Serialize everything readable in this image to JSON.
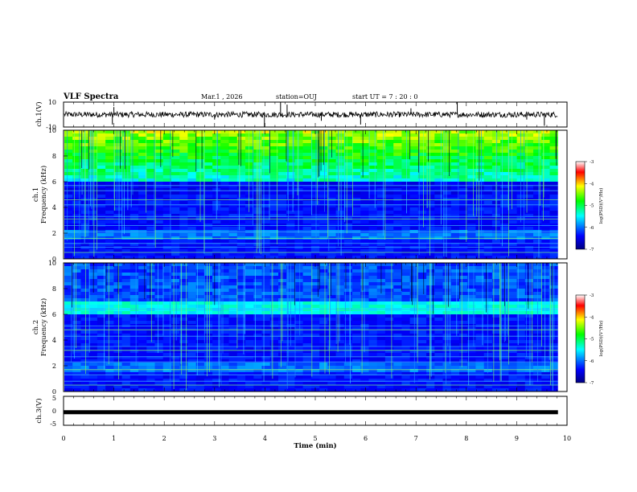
{
  "header": {
    "title": "VLF Spectra",
    "date": "Mar.1 , 2026",
    "station": "station=OUJ",
    "start": "start UT = 7 : 20 : 0"
  },
  "chart_data": [
    {
      "type": "line",
      "name": "ch1-waveform",
      "ylabel": "ch.1(V)",
      "ylim": [
        -10,
        10
      ],
      "yticks": [
        "10",
        "-10"
      ],
      "baseline": 0,
      "spikes": [
        {
          "t": 0.97,
          "v": -8
        },
        {
          "t": 1.0,
          "v": 6
        },
        {
          "t": 3.0,
          "v": -4
        },
        {
          "t": 3.99,
          "v": -10
        },
        {
          "t": 4.31,
          "v": 10
        },
        {
          "t": 4.44,
          "v": 8
        },
        {
          "t": 5.12,
          "v": -5
        },
        {
          "t": 5.9,
          "v": -8
        },
        {
          "t": 6.9,
          "v": 5
        },
        {
          "t": 7.82,
          "v": 10
        },
        {
          "t": 9.2,
          "v": -4
        },
        {
          "t": 9.55,
          "v": -9
        }
      ]
    },
    {
      "type": "heatmap",
      "name": "ch1-spectrogram",
      "ylabel": "ch.1 Frequency (kHz)",
      "ylim": [
        0,
        10
      ],
      "yticks": [
        "0",
        "2",
        "4",
        "6",
        "8",
        "10"
      ],
      "colorbar_label": "log(PSD)(V²/Hz)",
      "colorbar_range": [
        -7,
        -3
      ],
      "colorbar_ticks": [
        "-3",
        "-4",
        "-5",
        "-6",
        "-7"
      ],
      "lines_khz": [
        0.5,
        0.9,
        1.2,
        1.6,
        2.1,
        2.6,
        3.1,
        3.3,
        4.2,
        4.6,
        5.3,
        5.7
      ],
      "band_khz": [
        6.0,
        10.0
      ]
    },
    {
      "type": "heatmap",
      "name": "ch2-spectrogram",
      "ylabel": "ch.2 Frequency (kHz)",
      "ylim": [
        0,
        10
      ],
      "yticks": [
        "0",
        "2",
        "4",
        "6",
        "8",
        "10"
      ],
      "colorbar_label": "log(PSD)(V²/Hz)",
      "colorbar_range": [
        -7,
        -3
      ],
      "colorbar_ticks": [
        "-3",
        "-4",
        "-5",
        "-6",
        "-7"
      ],
      "lines_khz": [
        0.5,
        0.8,
        1.3,
        1.7,
        2.3,
        2.7,
        3.2,
        3.5,
        4.3,
        4.8,
        5.1,
        6.4
      ],
      "band_khz": [
        6.0,
        7.0
      ]
    },
    {
      "type": "line",
      "name": "ch3-waveform",
      "ylabel": "ch.3(V)",
      "ylim": [
        -5,
        5
      ],
      "yticks": [
        "5",
        "0",
        "-5"
      ],
      "level": -0.5,
      "xlabel": "Time (min)",
      "xlim": [
        0,
        10
      ],
      "xticks": [
        "0",
        "1",
        "2",
        "3",
        "4",
        "5",
        "6",
        "7",
        "8",
        "9",
        "10"
      ]
    }
  ]
}
